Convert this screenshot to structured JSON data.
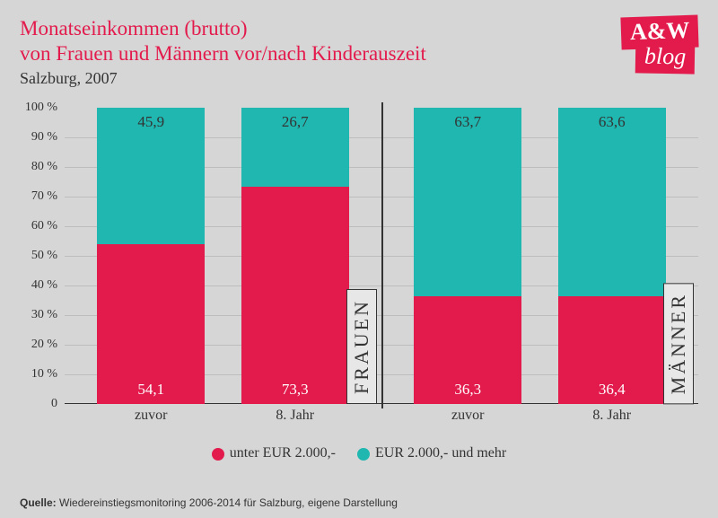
{
  "title_line1": "Monatseinkommen (brutto)",
  "title_line2": "von Frauen und Männern vor/nach Kinderauszeit",
  "subtitle": "Salzburg, 2007",
  "title_color": "#e31b4c",
  "logo": {
    "line1": "A&W",
    "line2": "blog",
    "bg": "#e31b4c"
  },
  "chart": {
    "type": "stacked-bar",
    "ylim": [
      0,
      100
    ],
    "ytick_step": 10,
    "y_suffix": " %",
    "gridline_color": "#bdbdbd",
    "axis_color": "#333333",
    "background": "#d6d6d6",
    "panels": [
      {
        "label": "FRAUEN",
        "bars": [
          {
            "x": "zuvor",
            "lower": 54.1,
            "upper": 45.9,
            "lower_label": "54,1",
            "upper_label": "45,9"
          },
          {
            "x": "8. Jahr",
            "lower": 73.3,
            "upper": 26.7,
            "lower_label": "73,3",
            "upper_label": "26,7"
          }
        ]
      },
      {
        "label": "MÄNNER",
        "bars": [
          {
            "x": "zuvor",
            "lower": 36.3,
            "upper": 63.7,
            "lower_label": "36,3",
            "upper_label": "63,7"
          },
          {
            "x": "8. Jahr",
            "lower": 36.4,
            "upper": 63.6,
            "lower_label": "36,4",
            "upper_label": "63,6"
          }
        ]
      }
    ],
    "series": {
      "lower": {
        "label": "unter EUR 2.000,-",
        "color": "#e31b4c",
        "text_color": "#ffffff"
      },
      "upper": {
        "label": "EUR 2.000,- und mehr",
        "color": "#1fb7b0",
        "text_color": "#333333"
      }
    }
  },
  "source": {
    "label": "Quelle:",
    "text": "Wiedereinstiegsmonitoring 2006-2014 für Salzburg, eigene Darstellung"
  }
}
